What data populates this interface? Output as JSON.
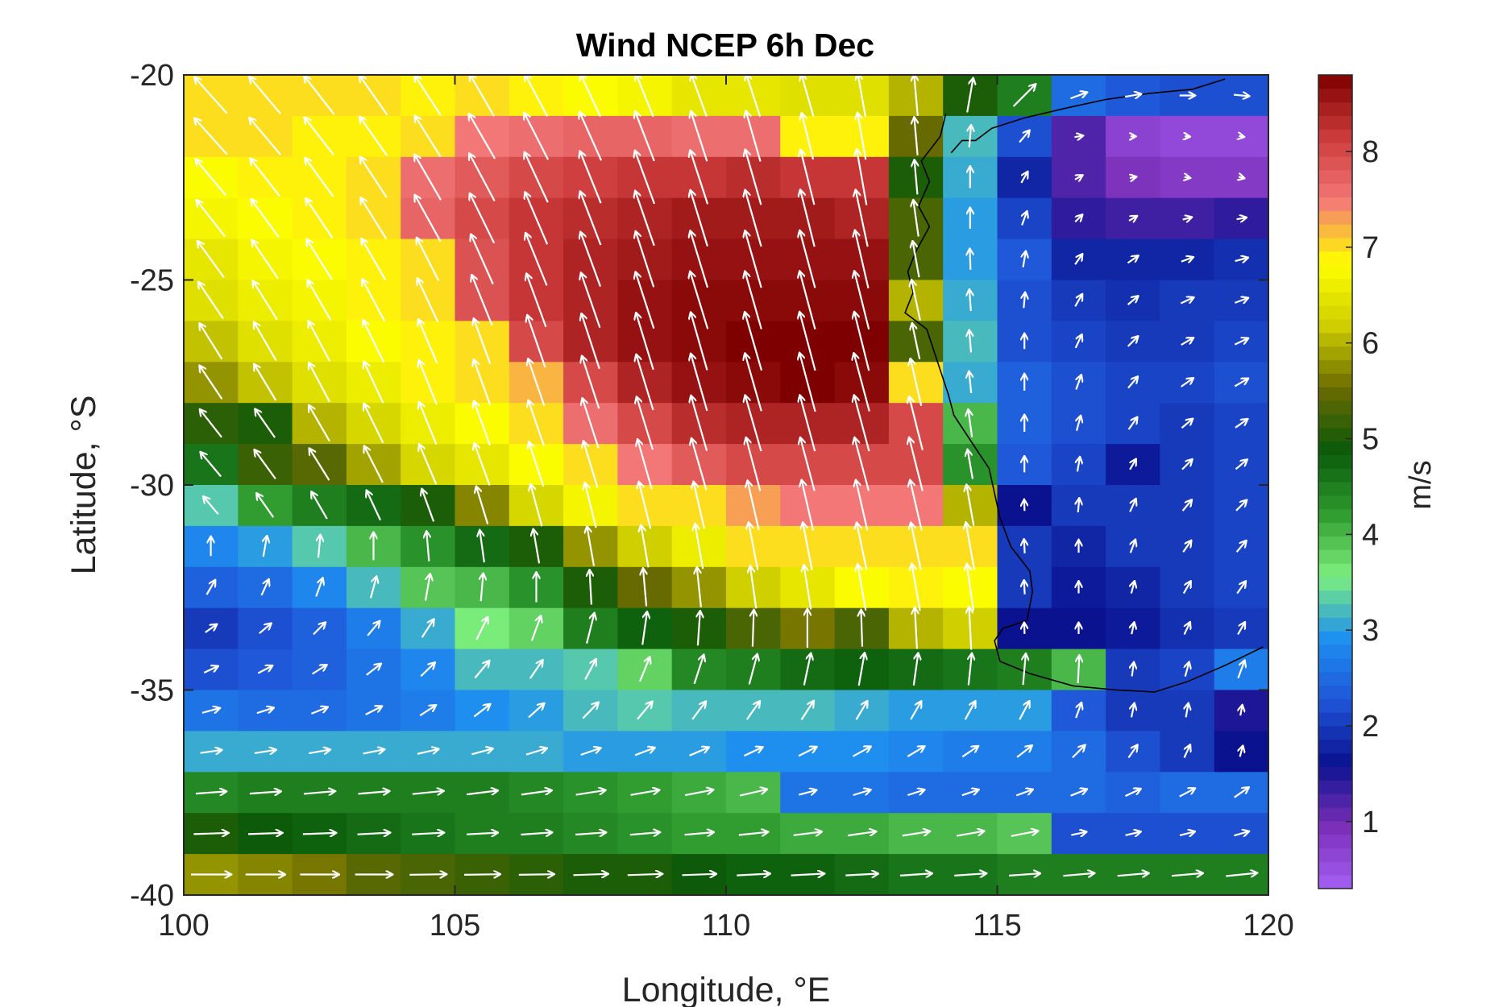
{
  "chart_data": {
    "type": "heatmap",
    "title": "Wind NCEP 6h Dec",
    "xlabel": "Longitude, °E",
    "ylabel": "Latitude, °S",
    "colorbar_label": "m/s",
    "xlim": [
      100,
      120
    ],
    "ylim": [
      -40,
      -20
    ],
    "xticks": [
      100,
      105,
      110,
      115,
      120
    ],
    "yticks": [
      -20,
      -25,
      -30,
      -35,
      -40
    ],
    "colorbar_range": [
      0.3,
      8.8
    ],
    "colorbar_ticks": [
      1,
      2,
      3,
      4,
      5,
      6,
      7,
      8
    ],
    "colormap_colors": [
      "#a55ff5",
      "#7b2fb8",
      "#0a1290",
      "#1f55d8",
      "#1e90f0",
      "#7ef07e",
      "#2e9a2e",
      "#0a5a0a",
      "#6b6b00",
      "#cfcf00",
      "#ffff00",
      "#f47878",
      "#cc3b3b",
      "#7e0000"
    ],
    "arrow_color": "#ffffff",
    "coastline_color": "#000000",
    "grid": false,
    "grid_lon_start": 100.5,
    "grid_lat_start": -20.5,
    "grid_step": 1.0,
    "grid_columns": 20,
    "wind_speed": [
      [
        7.0,
        7.0,
        7.0,
        7.0,
        6.9,
        7.0,
        6.9,
        6.8,
        6.7,
        6.5,
        6.5,
        6.4,
        6.4,
        6.0,
        5.0,
        4.5,
        2.5,
        2.3,
        2.2,
        2.2
      ],
      [
        7.0,
        7.0,
        6.9,
        6.9,
        7.0,
        7.5,
        7.6,
        7.7,
        7.7,
        7.6,
        7.6,
        6.9,
        6.9,
        5.5,
        3.2,
        2.2,
        1.2,
        0.7,
        0.6,
        0.6
      ],
      [
        6.8,
        6.9,
        6.9,
        7.0,
        7.6,
        7.8,
        8.0,
        8.1,
        8.2,
        8.2,
        8.3,
        8.2,
        8.2,
        5.0,
        3.1,
        1.8,
        1.2,
        0.9,
        0.8,
        0.8
      ],
      [
        6.7,
        6.8,
        6.9,
        7.0,
        7.7,
        8.0,
        8.2,
        8.3,
        8.4,
        8.5,
        8.5,
        8.5,
        8.4,
        5.3,
        3.0,
        2.1,
        1.4,
        1.3,
        1.3,
        1.4
      ],
      [
        6.5,
        6.7,
        6.8,
        6.9,
        7.0,
        7.9,
        8.2,
        8.4,
        8.5,
        8.6,
        8.6,
        8.6,
        8.6,
        5.3,
        3.0,
        2.3,
        1.8,
        1.8,
        1.8,
        1.9
      ],
      [
        6.4,
        6.6,
        6.7,
        6.9,
        7.0,
        7.9,
        8.2,
        8.4,
        8.6,
        8.7,
        8.7,
        8.7,
        8.7,
        6.0,
        3.1,
        2.2,
        2.0,
        1.9,
        2.0,
        2.0
      ],
      [
        6.1,
        6.4,
        6.6,
        6.8,
        6.9,
        7.0,
        8.0,
        8.4,
        8.6,
        8.7,
        8.8,
        8.8,
        8.8,
        5.3,
        3.2,
        2.2,
        2.1,
        2.0,
        2.0,
        2.1
      ],
      [
        5.8,
        6.1,
        6.4,
        6.6,
        6.9,
        7.0,
        7.2,
        8.0,
        8.4,
        8.6,
        8.7,
        8.8,
        8.7,
        7.0,
        3.1,
        2.4,
        2.2,
        2.1,
        2.1,
        2.2
      ],
      [
        5.1,
        5.0,
        6.0,
        6.3,
        6.6,
        6.8,
        7.0,
        7.6,
        8.0,
        8.3,
        8.4,
        8.4,
        8.4,
        8.0,
        4.0,
        2.4,
        2.2,
        2.1,
        2.0,
        2.1
      ],
      [
        4.6,
        5.2,
        5.4,
        5.9,
        6.3,
        6.5,
        6.8,
        7.0,
        7.5,
        7.8,
        8.0,
        8.0,
        8.0,
        8.0,
        4.3,
        2.3,
        2.1,
        1.7,
        2.0,
        2.1
      ],
      [
        3.3,
        4.2,
        4.5,
        4.7,
        5.0,
        5.7,
        6.3,
        6.7,
        7.0,
        7.0,
        7.3,
        7.5,
        7.5,
        7.5,
        6.0,
        1.6,
        2.0,
        2.0,
        2.0,
        2.1
      ],
      [
        2.8,
        3.0,
        3.3,
        4.0,
        4.3,
        4.7,
        5.0,
        5.8,
        6.2,
        6.6,
        7.0,
        7.0,
        7.0,
        7.0,
        7.0,
        2.0,
        1.8,
        2.0,
        2.0,
        2.1
      ],
      [
        2.4,
        2.5,
        2.8,
        3.2,
        3.9,
        4.0,
        4.3,
        5.0,
        5.5,
        5.8,
        6.2,
        6.5,
        6.8,
        6.9,
        6.8,
        2.0,
        1.7,
        1.8,
        2.0,
        2.1
      ],
      [
        2.0,
        2.2,
        2.4,
        2.7,
        3.1,
        3.6,
        3.8,
        4.5,
        4.8,
        5.0,
        5.3,
        5.6,
        5.3,
        6.0,
        6.2,
        1.6,
        1.6,
        1.7,
        1.9,
        2.0
      ],
      [
        2.2,
        2.3,
        2.4,
        2.6,
        2.8,
        3.2,
        3.2,
        3.3,
        3.8,
        4.4,
        4.5,
        4.7,
        4.8,
        4.7,
        4.6,
        4.5,
        4.0,
        2.0,
        2.1,
        2.7
      ],
      [
        2.6,
        2.5,
        2.5,
        2.6,
        2.7,
        2.9,
        3.0,
        3.2,
        3.3,
        3.2,
        3.2,
        3.2,
        3.1,
        3.0,
        3.0,
        3.0,
        2.3,
        2.0,
        2.0,
        1.5
      ],
      [
        3.1,
        3.1,
        3.1,
        3.1,
        3.1,
        3.1,
        3.1,
        3.0,
        3.0,
        3.0,
        2.9,
        2.9,
        2.9,
        2.8,
        2.7,
        2.7,
        2.5,
        2.2,
        2.0,
        1.6
      ],
      [
        4.4,
        4.5,
        4.5,
        4.5,
        4.5,
        4.5,
        4.4,
        4.3,
        4.2,
        4.1,
        4.0,
        2.6,
        2.6,
        2.5,
        2.5,
        2.5,
        2.5,
        2.4,
        2.5,
        2.5
      ],
      [
        5.0,
        4.9,
        4.8,
        4.7,
        4.6,
        4.5,
        4.5,
        4.4,
        4.3,
        4.2,
        4.2,
        4.1,
        4.1,
        4.0,
        4.0,
        3.9,
        2.2,
        2.2,
        2.2,
        2.2
      ],
      [
        5.8,
        5.7,
        5.6,
        5.4,
        5.3,
        5.2,
        5.1,
        5.0,
        5.0,
        4.9,
        4.8,
        4.8,
        4.7,
        4.6,
        4.6,
        4.5,
        4.5,
        4.5,
        4.5,
        4.5
      ]
    ],
    "wind_direction_deg": [
      [
        -42,
        -40,
        -38,
        -35,
        -33,
        -30,
        -28,
        -25,
        -22,
        -20,
        -18,
        -16,
        -10,
        -5,
        10,
        45,
        70,
        80,
        90,
        95
      ],
      [
        -42,
        -40,
        -38,
        -35,
        -32,
        -30,
        -27,
        -24,
        -21,
        -18,
        -16,
        -14,
        -10,
        -5,
        5,
        40,
        80,
        90,
        95,
        100
      ],
      [
        -40,
        -38,
        -36,
        -33,
        -30,
        -28,
        -25,
        -22,
        -20,
        -18,
        -16,
        -14,
        -10,
        -5,
        0,
        30,
        60,
        80,
        100,
        105
      ],
      [
        -38,
        -36,
        -34,
        -32,
        -29,
        -26,
        -23,
        -21,
        -19,
        -17,
        -16,
        -14,
        -12,
        -8,
        0,
        20,
        45,
        60,
        75,
        80
      ],
      [
        -36,
        -34,
        -32,
        -30,
        -27,
        -24,
        -22,
        -20,
        -18,
        -17,
        -16,
        -15,
        -13,
        -10,
        -2,
        10,
        35,
        55,
        70,
        75
      ],
      [
        -34,
        -32,
        -30,
        -28,
        -25,
        -22,
        -20,
        -19,
        -18,
        -17,
        -16,
        -15,
        -14,
        -12,
        -4,
        5,
        30,
        50,
        65,
        70
      ],
      [
        -32,
        -30,
        -28,
        -26,
        -23,
        -20,
        -19,
        -18,
        -17,
        -16,
        -16,
        -15,
        -14,
        -12,
        -5,
        0,
        25,
        45,
        60,
        65
      ],
      [
        -34,
        -31,
        -28,
        -25,
        -22,
        -20,
        -19,
        -18,
        -17,
        -16,
        -16,
        -15,
        -15,
        -13,
        -6,
        0,
        20,
        40,
        55,
        60
      ],
      [
        -38,
        -35,
        -30,
        -26,
        -22,
        -20,
        -19,
        -18,
        -17,
        -16,
        -16,
        -15,
        -15,
        -14,
        -8,
        0,
        15,
        35,
        50,
        55
      ],
      [
        -40,
        -36,
        -32,
        -27,
        -23,
        -20,
        -18,
        -17,
        -16,
        -16,
        -15,
        -15,
        -15,
        -14,
        -10,
        0,
        10,
        30,
        45,
        50
      ],
      [
        -40,
        -35,
        -30,
        -25,
        -20,
        -17,
        -15,
        -14,
        -14,
        -13,
        -13,
        -13,
        -13,
        -13,
        -10,
        -2,
        5,
        25,
        40,
        45
      ],
      [
        0,
        10,
        5,
        0,
        -5,
        -8,
        -10,
        -10,
        -10,
        -10,
        -11,
        -11,
        -12,
        -12,
        -10,
        -3,
        0,
        20,
        35,
        40
      ],
      [
        30,
        25,
        20,
        15,
        10,
        5,
        0,
        -3,
        -5,
        -6,
        -8,
        -9,
        -10,
        -10,
        -8,
        -3,
        0,
        15,
        30,
        35
      ],
      [
        55,
        50,
        45,
        40,
        33,
        26,
        20,
        14,
        8,
        4,
        2,
        0,
        -2,
        -3,
        -3,
        -2,
        0,
        12,
        25,
        30
      ],
      [
        65,
        62,
        58,
        52,
        46,
        40,
        34,
        28,
        22,
        18,
        15,
        12,
        10,
        8,
        6,
        5,
        3,
        8,
        15,
        20
      ],
      [
        75,
        72,
        68,
        63,
        57,
        52,
        48,
        44,
        40,
        37,
        35,
        33,
        31,
        30,
        29,
        28,
        20,
        12,
        10,
        10
      ],
      [
        82,
        81,
        80,
        79,
        77,
        75,
        73,
        71,
        69,
        67,
        65,
        63,
        61,
        59,
        56,
        52,
        45,
        35,
        25,
        15
      ],
      [
        86,
        86,
        85,
        85,
        84,
        83,
        82,
        81,
        80,
        79,
        77,
        75,
        73,
        72,
        71,
        70,
        68,
        65,
        62,
        55
      ],
      [
        88,
        88,
        88,
        87,
        87,
        87,
        86,
        86,
        85,
        85,
        84,
        83,
        82,
        81,
        80,
        79,
        78,
        77,
        76,
        74
      ],
      [
        90,
        90,
        90,
        90,
        89,
        89,
        89,
        88,
        88,
        88,
        87,
        87,
        87,
        86,
        86,
        86,
        85,
        85,
        85,
        84
      ]
    ],
    "coastline": [
      [
        114.05,
        -20.95
      ],
      [
        113.95,
        -21.5
      ],
      [
        113.6,
        -22.1
      ],
      [
        113.75,
        -22.6
      ],
      [
        113.55,
        -23.2
      ],
      [
        113.75,
        -23.7
      ],
      [
        113.5,
        -24.3
      ],
      [
        113.35,
        -24.8
      ],
      [
        113.45,
        -25.3
      ],
      [
        113.3,
        -25.8
      ],
      [
        113.7,
        -26.2
      ],
      [
        113.8,
        -26.6
      ],
      [
        113.95,
        -27.2
      ],
      [
        114.1,
        -27.8
      ],
      [
        114.2,
        -28.3
      ],
      [
        114.5,
        -28.9
      ],
      [
        114.85,
        -29.6
      ],
      [
        114.95,
        -30.2
      ],
      [
        115.05,
        -30.8
      ],
      [
        115.25,
        -31.5
      ],
      [
        115.6,
        -32.1
      ],
      [
        115.65,
        -32.6
      ],
      [
        115.55,
        -33.3
      ],
      [
        115.1,
        -33.5
      ],
      [
        114.95,
        -33.8
      ],
      [
        115.05,
        -34.3
      ],
      [
        115.6,
        -34.6
      ],
      [
        116.4,
        -34.9
      ],
      [
        117.2,
        -35.0
      ],
      [
        117.9,
        -35.05
      ],
      [
        118.5,
        -34.8
      ],
      [
        119.2,
        -34.4
      ],
      [
        119.9,
        -33.95
      ]
    ],
    "coastline_north": [
      [
        114.15,
        -21.9
      ],
      [
        114.35,
        -21.6
      ],
      [
        114.6,
        -21.6
      ],
      [
        114.9,
        -21.3
      ],
      [
        115.5,
        -21.05
      ],
      [
        116.3,
        -20.8
      ],
      [
        117.0,
        -20.6
      ],
      [
        117.8,
        -20.45
      ],
      [
        118.6,
        -20.35
      ],
      [
        119.2,
        -20.1
      ]
    ]
  }
}
